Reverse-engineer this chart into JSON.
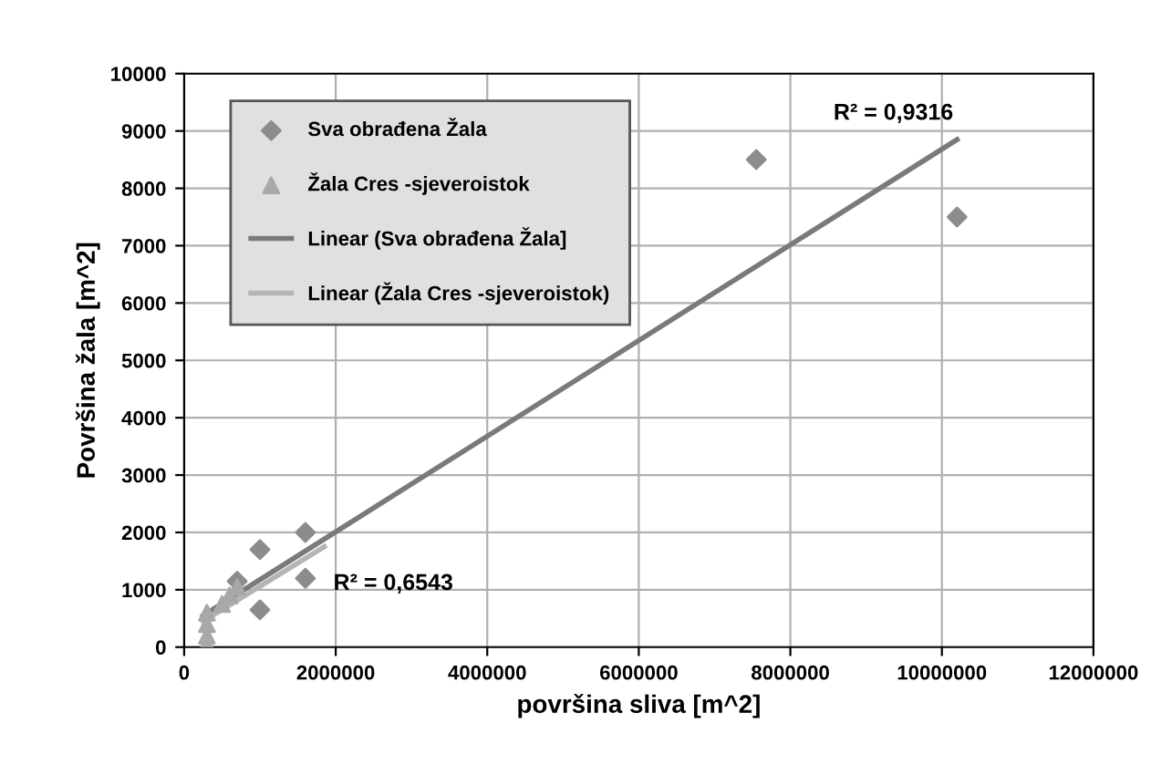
{
  "chart_data": {
    "type": "scatter",
    "xlabel": "površina sliva [m^2]",
    "ylabel": "Površina žala [m^2]",
    "xlim": [
      0,
      12000000
    ],
    "xticks": [
      0,
      2000000,
      4000000,
      6000000,
      8000000,
      10000000,
      12000000
    ],
    "ylim": [
      0,
      10000
    ],
    "yticks": [
      0,
      1000,
      2000,
      3000,
      4000,
      5000,
      6000,
      7000,
      8000,
      9000,
      10000
    ],
    "grid": true,
    "legend": "top left",
    "series": [
      {
        "name": "Sva obrađena Žala",
        "marker": "diamond",
        "color": "#8c8c8c",
        "x": [
          7550000,
          10200000,
          1600000,
          1000000,
          700000,
          1600000,
          1000000
        ],
        "values": [
          8500,
          7500,
          2000,
          1700,
          1150,
          1200,
          650
        ]
      },
      {
        "name": "Žala Cres -sjeveroistok",
        "marker": "triangle",
        "color": "#a8a8a8",
        "x": [
          600000,
          500000,
          300000,
          300000,
          300000,
          300000,
          700000
        ],
        "values": [
          900,
          750,
          600,
          400,
          200,
          50,
          1050
        ]
      },
      {
        "name": "Linear (Sva obrađena Žala]",
        "type": "line",
        "marker": "none",
        "color": "#7a7a7a",
        "x": [
          250000,
          10200000
        ],
        "values": [
          550,
          8850
        ]
      },
      {
        "name": "Linear (Žala Cres -sjeveroistok)",
        "type": "line",
        "marker": "none",
        "color": "#b4b4b4",
        "x": [
          250000,
          1850000
        ],
        "values": [
          450,
          1750
        ]
      }
    ],
    "annotations": [
      "R² = 0,9316",
      "R² = 0,6543"
    ]
  }
}
